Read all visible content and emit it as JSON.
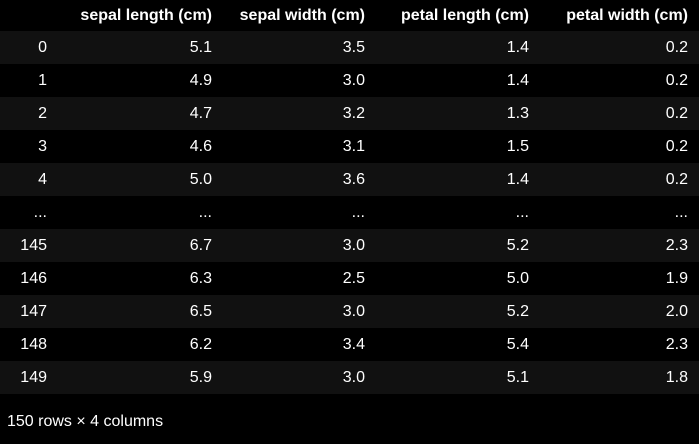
{
  "dataframe": {
    "columns": [
      {
        "label": ""
      },
      {
        "label": "sepal length (cm)"
      },
      {
        "label": "sepal width (cm)"
      },
      {
        "label": "petal length (cm)"
      },
      {
        "label": "petal width (cm)"
      }
    ],
    "rows": [
      {
        "index": "0",
        "cells": [
          "5.1",
          "3.5",
          "1.4",
          "0.2"
        ]
      },
      {
        "index": "1",
        "cells": [
          "4.9",
          "3.0",
          "1.4",
          "0.2"
        ]
      },
      {
        "index": "2",
        "cells": [
          "4.7",
          "3.2",
          "1.3",
          "0.2"
        ]
      },
      {
        "index": "3",
        "cells": [
          "4.6",
          "3.1",
          "1.5",
          "0.2"
        ]
      },
      {
        "index": "4",
        "cells": [
          "5.0",
          "3.6",
          "1.4",
          "0.2"
        ]
      },
      {
        "index": "...",
        "cells": [
          "...",
          "...",
          "...",
          "..."
        ]
      },
      {
        "index": "145",
        "cells": [
          "6.7",
          "3.0",
          "5.2",
          "2.3"
        ]
      },
      {
        "index": "146",
        "cells": [
          "6.3",
          "2.5",
          "5.0",
          "1.9"
        ]
      },
      {
        "index": "147",
        "cells": [
          "6.5",
          "3.0",
          "5.2",
          "2.0"
        ]
      },
      {
        "index": "148",
        "cells": [
          "6.2",
          "3.4",
          "5.4",
          "2.3"
        ]
      },
      {
        "index": "149",
        "cells": [
          "5.9",
          "3.0",
          "5.1",
          "1.8"
        ]
      }
    ],
    "shape_note": "150 rows × 4 columns"
  },
  "colors": {
    "background": "#000000",
    "stripe": "#111111",
    "text": "#ffffff"
  }
}
